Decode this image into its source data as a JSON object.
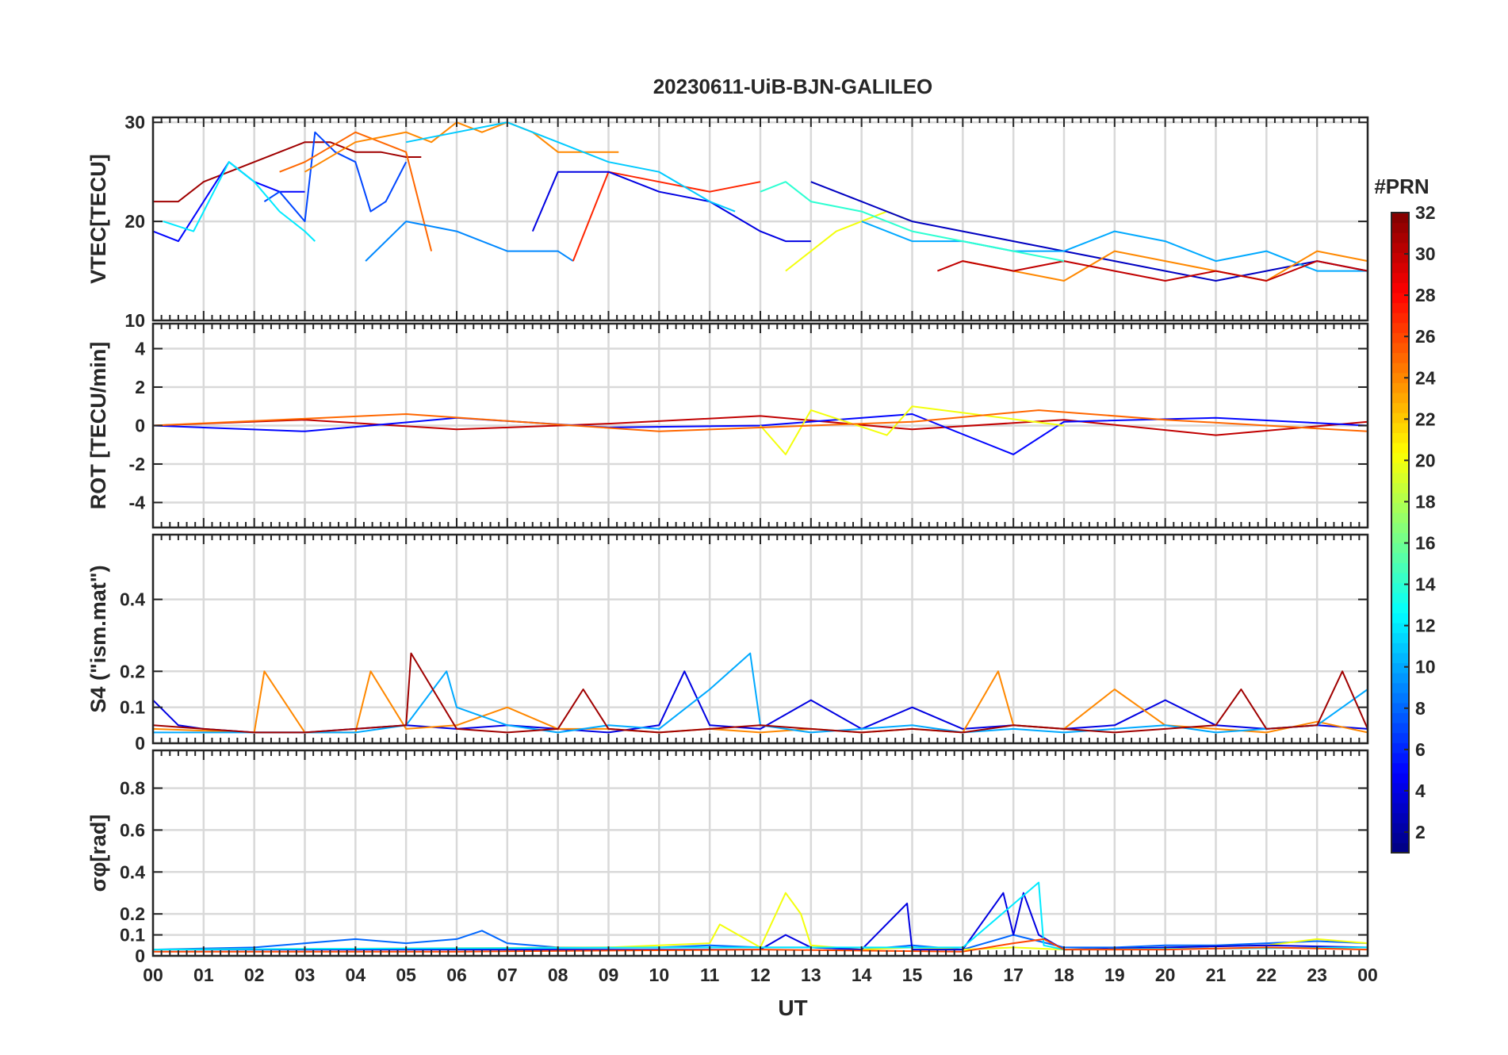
{
  "chart_data": {
    "type": "line",
    "title": "20230611-UiB-BJN-GALILEO",
    "xlabel": "UT",
    "x_ticks": [
      "00",
      "01",
      "02",
      "03",
      "04",
      "05",
      "06",
      "07",
      "08",
      "09",
      "10",
      "11",
      "12",
      "13",
      "14",
      "15",
      "16",
      "17",
      "18",
      "19",
      "20",
      "21",
      "22",
      "23",
      "00"
    ],
    "xlim": [
      0,
      24
    ],
    "colorbar": {
      "title": "#PRN",
      "range": [
        1,
        32
      ],
      "ticks": [
        "2",
        "4",
        "6",
        "8",
        "10",
        "12",
        "14",
        "16",
        "18",
        "20",
        "22",
        "24",
        "26",
        "28",
        "30",
        "32"
      ],
      "colormap": "jet"
    },
    "panels": [
      {
        "id": "vtec",
        "ylabel": "VTEC[TECU]",
        "ylim": [
          10,
          30.5
        ],
        "yticks": [
          10,
          20,
          30
        ],
        "ytick_labels": [
          "10",
          "20",
          "30"
        ],
        "series": [
          {
            "prn": 31,
            "x": [
              0,
              0.5,
              1,
              1.5,
              2,
              2.5,
              3,
              3.5,
              4,
              4.5,
              5,
              5.3
            ],
            "y": [
              22,
              22,
              24,
              25,
              26,
              27,
              28,
              28,
              27,
              27,
              26.5,
              26.5
            ]
          },
          {
            "prn": 5,
            "x": [
              0,
              0.5,
              1,
              1.5,
              2,
              2.5,
              3
            ],
            "y": [
              19,
              18,
              22,
              26,
              24,
              23,
              23
            ]
          },
          {
            "prn": 7,
            "x": [
              2.2,
              2.5,
              3,
              3.2,
              3.6,
              4,
              4.3,
              4.6,
              5
            ],
            "y": [
              22,
              23,
              20,
              29,
              27,
              26,
              21,
              22,
              26
            ]
          },
          {
            "prn": 25,
            "x": [
              2.5,
              3,
              4,
              4.5,
              5,
              5.3,
              5.5
            ],
            "y": [
              25,
              26,
              29,
              28,
              27,
              21,
              17
            ]
          },
          {
            "prn": 24,
            "x": [
              3,
              4,
              5,
              5.5,
              6,
              6.5,
              7,
              7.5,
              8,
              8.5,
              9,
              9.2
            ],
            "y": [
              25,
              28,
              29,
              28,
              30,
              29,
              30,
              29,
              27,
              27,
              27,
              27
            ]
          },
          {
            "prn": 12,
            "x": [
              0.2,
              0.8,
              1.5,
              2,
              2.5,
              3,
              3.2
            ],
            "y": [
              20,
              19,
              26,
              24,
              21,
              19,
              18
            ]
          },
          {
            "prn": 9,
            "x": [
              4.2,
              5,
              6,
              7,
              8,
              8.3
            ],
            "y": [
              16,
              20,
              19,
              17,
              17,
              16
            ]
          },
          {
            "prn": 27,
            "x": [
              8.3,
              9,
              10,
              11,
              12
            ],
            "y": [
              16,
              25,
              24,
              23,
              24
            ]
          },
          {
            "prn": 4,
            "x": [
              7.5,
              8,
              9,
              10,
              11,
              12,
              12.5,
              13
            ],
            "y": [
              19,
              25,
              25,
              23,
              22,
              19,
              18,
              18
            ]
          },
          {
            "prn": 11,
            "x": [
              5,
              6,
              7,
              8,
              9,
              10,
              11,
              11.5
            ],
            "y": [
              28,
              29,
              30,
              28,
              26,
              25,
              22,
              21
            ]
          },
          {
            "prn": 20,
            "x": [
              12.5,
              13,
              13.5,
              14,
              14.5,
              15
            ],
            "y": [
              15,
              17,
              19,
              20,
              21,
              20
            ]
          },
          {
            "prn": 3,
            "x": [
              13,
              14,
              15,
              16,
              17,
              18,
              19,
              20,
              21,
              22,
              23,
              24
            ],
            "y": [
              24,
              22,
              20,
              19,
              18,
              17,
              16,
              15,
              14,
              15,
              16,
              15
            ]
          },
          {
            "prn": 10,
            "x": [
              14,
              15,
              16,
              17,
              18,
              19,
              20,
              21,
              22,
              23,
              24
            ],
            "y": [
              20,
              18,
              18,
              17,
              17,
              19,
              18,
              16,
              17,
              15,
              15
            ]
          },
          {
            "prn": 24,
            "x": [
              16,
              17,
              18,
              19,
              20,
              21,
              22,
              23,
              24
            ],
            "y": [
              16,
              15,
              14,
              17,
              16,
              15,
              14,
              17,
              16
            ]
          },
          {
            "prn": 30,
            "x": [
              15.5,
              16,
              17,
              18,
              19,
              20,
              21,
              22,
              23,
              24
            ],
            "y": [
              15,
              16,
              15,
              16,
              15,
              14,
              15,
              14,
              16,
              15
            ]
          },
          {
            "prn": 14,
            "x": [
              12,
              12.5,
              13,
              14,
              15,
              16,
              17,
              18
            ],
            "y": [
              23,
              24,
              22,
              21,
              19,
              18,
              17,
              16
            ]
          }
        ]
      },
      {
        "id": "rot",
        "ylabel": "ROT [TECU/min]",
        "ylim": [
          -5.3,
          5.3
        ],
        "yticks": [
          -4,
          -2,
          0,
          2,
          4
        ],
        "ytick_labels": [
          "-4",
          "-2",
          "0",
          "2",
          "4"
        ],
        "series": [
          {
            "prn": 30,
            "x": [
              0,
              3,
              6,
              9,
              12,
              15,
              18,
              21,
              24
            ],
            "y": [
              0,
              0.3,
              -0.2,
              0.1,
              0.5,
              -0.2,
              0.3,
              -0.5,
              0.2
            ]
          },
          {
            "prn": 5,
            "x": [
              0,
              3,
              6,
              9,
              12,
              15,
              17,
              18,
              21,
              24
            ],
            "y": [
              0,
              -0.3,
              0.4,
              -0.1,
              0,
              0.6,
              -1.5,
              0.2,
              0.4,
              0
            ]
          },
          {
            "prn": 20,
            "x": [
              12,
              12.5,
              13,
              14.5,
              15,
              18
            ],
            "y": [
              0,
              -1.5,
              0.8,
              -0.5,
              1,
              0
            ]
          },
          {
            "prn": 25,
            "x": [
              0,
              5,
              10,
              15,
              17.5,
              20,
              24
            ],
            "y": [
              0,
              0.6,
              -0.3,
              0.2,
              0.8,
              0.3,
              -0.3
            ]
          }
        ]
      },
      {
        "id": "s4",
        "ylabel": "S4 (\"ism.mat\")",
        "ylim": [
          0,
          0.58
        ],
        "yticks": [
          0,
          0.1,
          0.2,
          0.4
        ],
        "ytick_labels": [
          "0",
          "0.1",
          "0.2",
          "0.4"
        ],
        "series": [
          {
            "prn": 4,
            "x": [
              0,
              0.5,
              1,
              2,
              3,
              4,
              5,
              6,
              7,
              8,
              9,
              10,
              10.5,
              11,
              12,
              13,
              14,
              15,
              16,
              17,
              18,
              19,
              20,
              21,
              22,
              23,
              24
            ],
            "y": [
              0.12,
              0.05,
              0.04,
              0.03,
              0.03,
              0.04,
              0.05,
              0.04,
              0.05,
              0.04,
              0.03,
              0.05,
              0.2,
              0.05,
              0.04,
              0.12,
              0.04,
              0.1,
              0.04,
              0.05,
              0.04,
              0.05,
              0.12,
              0.05,
              0.04,
              0.05,
              0.04
            ]
          },
          {
            "prn": 24,
            "x": [
              0,
              2,
              2.2,
              3,
              4,
              4.3,
              5,
              6,
              7,
              8,
              9,
              10,
              11,
              12,
              13,
              14,
              15,
              16,
              16.7,
              17,
              18,
              19,
              20,
              21,
              22,
              23,
              24
            ],
            "y": [
              0.04,
              0.03,
              0.2,
              0.03,
              0.03,
              0.2,
              0.04,
              0.05,
              0.1,
              0.04,
              0.04,
              0.03,
              0.04,
              0.03,
              0.04,
              0.03,
              0.04,
              0.03,
              0.2,
              0.05,
              0.04,
              0.15,
              0.05,
              0.04,
              0.03,
              0.06,
              0.03
            ]
          },
          {
            "prn": 10,
            "x": [
              0,
              4,
              5,
              5.8,
              6,
              7,
              8,
              9,
              10,
              11,
              11.8,
              12,
              13,
              14,
              15,
              16,
              17,
              18,
              19,
              20,
              21,
              22,
              23,
              24
            ],
            "y": [
              0.03,
              0.03,
              0.05,
              0.2,
              0.1,
              0.05,
              0.03,
              0.05,
              0.04,
              0.15,
              0.25,
              0.05,
              0.03,
              0.04,
              0.05,
              0.03,
              0.04,
              0.03,
              0.04,
              0.05,
              0.03,
              0.04,
              0.05,
              0.15
            ]
          },
          {
            "prn": 31,
            "x": [
              0,
              1,
              2,
              3,
              4,
              5,
              5.1,
              6,
              7,
              8,
              8.5,
              9,
              10,
              11,
              12,
              13,
              14,
              15,
              16,
              17,
              18,
              19,
              20,
              21,
              21.5,
              22,
              23,
              23.5,
              24
            ],
            "y": [
              0.05,
              0.04,
              0.03,
              0.03,
              0.04,
              0.05,
              0.25,
              0.04,
              0.03,
              0.04,
              0.15,
              0.04,
              0.03,
              0.04,
              0.05,
              0.04,
              0.03,
              0.04,
              0.03,
              0.05,
              0.04,
              0.03,
              0.04,
              0.05,
              0.15,
              0.04,
              0.05,
              0.2,
              0.04
            ]
          }
        ]
      },
      {
        "id": "sigma_phi",
        "ylabel": "σφ[rad]",
        "ylim": [
          0,
          0.98
        ],
        "yticks": [
          0,
          0.1,
          0.2,
          0.4,
          0.6,
          0.8
        ],
        "ytick_labels": [
          "0",
          "0.1",
          "0.2",
          "0.4",
          "0.6",
          "0.8"
        ],
        "series": [
          {
            "prn": 8,
            "x": [
              0,
              2,
              4,
              5,
              6,
              6.5,
              7,
              8,
              9,
              10,
              11,
              12,
              13,
              14,
              15,
              16,
              17,
              18,
              19,
              20,
              21,
              22,
              23,
              24
            ],
            "y": [
              0.03,
              0.04,
              0.08,
              0.06,
              0.08,
              0.12,
              0.06,
              0.04,
              0.04,
              0.04,
              0.05,
              0.04,
              0.04,
              0.03,
              0.05,
              0.03,
              0.1,
              0.04,
              0.04,
              0.05,
              0.05,
              0.06,
              0.07,
              0.06
            ]
          },
          {
            "prn": 20,
            "x": [
              0,
              9,
              10,
              11,
              11.2,
              12,
              12.5,
              12.8,
              13,
              14,
              15,
              16,
              17,
              18,
              20,
              22,
              23,
              24
            ],
            "y": [
              0.03,
              0.04,
              0.05,
              0.06,
              0.15,
              0.04,
              0.3,
              0.2,
              0.05,
              0.03,
              0.04,
              0.03,
              0.04,
              0.03,
              0.04,
              0.05,
              0.08,
              0.06
            ]
          },
          {
            "prn": 4,
            "x": [
              0,
              6,
              12,
              12.5,
              13,
              14,
              14.9,
              15,
              16,
              16.8,
              17,
              17.2,
              17.5,
              18,
              20,
              22,
              24
            ],
            "y": [
              0.03,
              0.03,
              0.03,
              0.1,
              0.04,
              0.03,
              0.25,
              0.03,
              0.03,
              0.3,
              0.1,
              0.3,
              0.1,
              0.03,
              0.04,
              0.05,
              0.04
            ]
          },
          {
            "prn": 12,
            "x": [
              0,
              10,
              16,
              17.5,
              17.6,
              18,
              24
            ],
            "y": [
              0.03,
              0.04,
              0.04,
              0.35,
              0.05,
              0.03,
              0.04
            ]
          },
          {
            "prn": 26,
            "x": [
              0,
              6,
              12,
              16,
              17,
              17.6,
              18,
              20,
              22,
              24
            ],
            "y": [
              0.02,
              0.02,
              0.03,
              0.02,
              0.06,
              0.08,
              0.03,
              0.03,
              0.04,
              0.03
            ]
          }
        ]
      }
    ]
  }
}
